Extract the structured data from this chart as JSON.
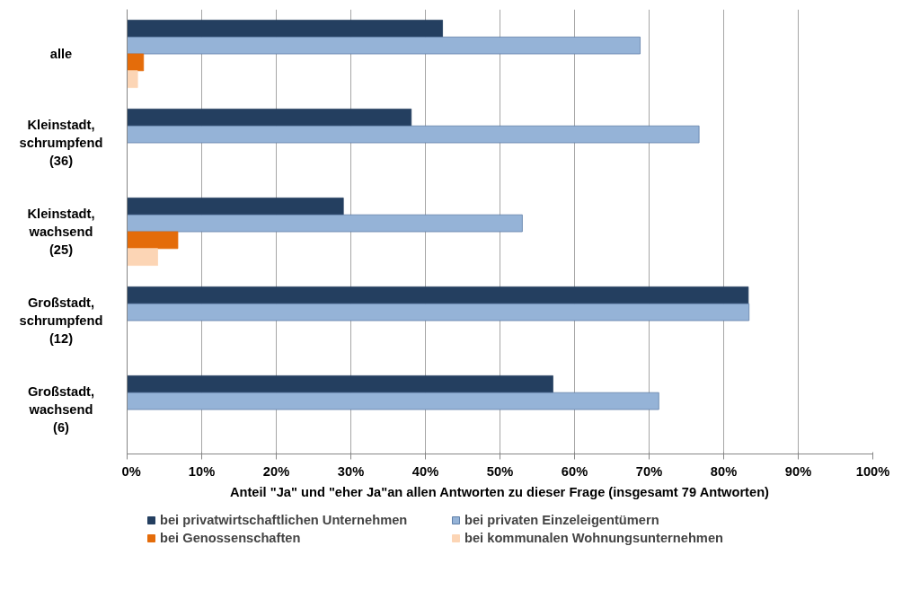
{
  "chart_data": {
    "type": "bar",
    "orientation": "horizontal",
    "categories": [
      "alle",
      "Kleinstadt,\nschrumpfend\n(36)",
      "Kleinstadt,\nwachsend\n(25)",
      "Großstadt,\nschrumpfend\n(12)",
      "Großstadt,\nwachsend\n(6)"
    ],
    "series": [
      {
        "name": "bei privatwirtschaftlichen Unternehmen",
        "color": "#243f60",
        "values": [
          42.3,
          38.1,
          29.0,
          83.3,
          57.1
        ]
      },
      {
        "name": "bei privaten Einzeleigentümern",
        "color": "#95b3d7",
        "values": [
          68.8,
          76.7,
          53.0,
          83.4,
          71.3
        ]
      },
      {
        "name": "bei Genossenschaften",
        "color": "#e46c0a",
        "values": [
          2.2,
          0,
          6.8,
          0,
          0
        ]
      },
      {
        "name": "bei kommunalen Wohnungsunternehmen",
        "color": "#fcd5b5",
        "values": [
          1.4,
          0,
          4.1,
          0,
          0
        ]
      }
    ],
    "xlabel": "Anteil \"Ja\" und \"eher Ja\"an allen Antworten zu dieser Frage (insgesamt 79 Antworten)",
    "xlim": [
      0,
      100
    ],
    "xticks": [
      {
        "value": 0,
        "label": "0%"
      },
      {
        "value": 10,
        "label": "10%"
      },
      {
        "value": 20,
        "label": "20%"
      },
      {
        "value": 30,
        "label": "30%"
      },
      {
        "value": 40,
        "label": "40%"
      },
      {
        "value": 50,
        "label": "50%"
      },
      {
        "value": 60,
        "label": "60%"
      },
      {
        "value": 70,
        "label": "70%"
      },
      {
        "value": 80,
        "label": "80%"
      },
      {
        "value": 90,
        "label": "90%"
      },
      {
        "value": 100,
        "label": "100%"
      }
    ],
    "grid": "x",
    "legend": "bottom"
  }
}
